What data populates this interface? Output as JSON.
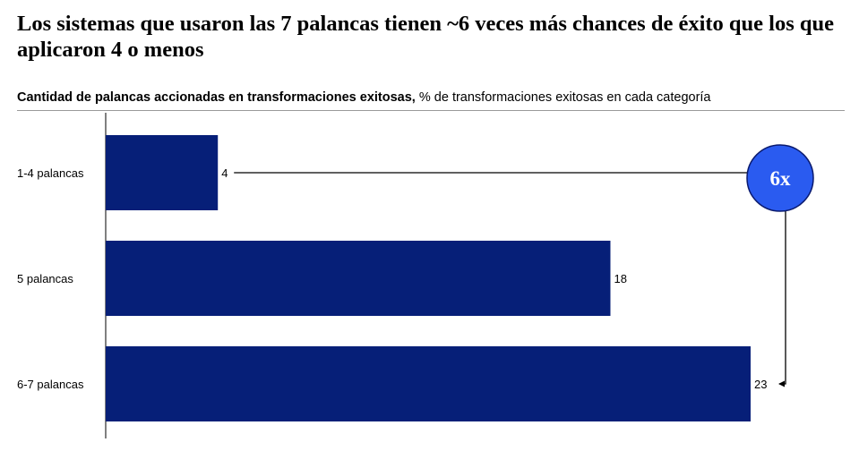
{
  "title": "Los sistemas que usaron las 7 palancas tienen ~6 veces más chances de éxito que los que aplicaron 4 o menos",
  "subtitle": {
    "bold": "Cantidad de palancas accionadas en transformaciones exitosas,",
    "regular": " % de transformaciones exitosas en cada categoría"
  },
  "colors": {
    "bar": "#061f78",
    "badge": "#2a5bf0",
    "badge_border": "#0a1a6e",
    "rule": "#9a9a9a"
  },
  "chart_data": {
    "type": "bar",
    "orientation": "horizontal",
    "categories": [
      "1-4 palancas",
      "5 palancas",
      "6-7 palancas"
    ],
    "values": [
      4,
      18,
      23
    ],
    "value_labels": [
      "4",
      "18",
      "23"
    ],
    "xlim": [
      0,
      23
    ],
    "grid": false,
    "annotation": {
      "text": "6x",
      "from_category": "1-4 palancas",
      "to_category": "6-7 palancas"
    }
  }
}
